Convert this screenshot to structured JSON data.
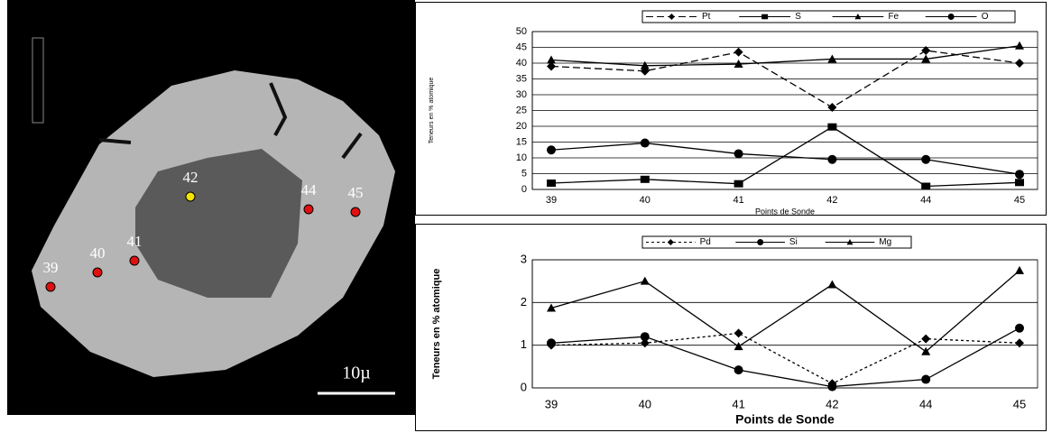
{
  "micrograph": {
    "points": [
      {
        "label": "39",
        "color": "#e01010"
      },
      {
        "label": "40",
        "color": "#e01010"
      },
      {
        "label": "41",
        "color": "#e01010"
      },
      {
        "label": "42",
        "color": "#f5e400"
      },
      {
        "label": "44",
        "color": "#e01010"
      },
      {
        "label": "45",
        "color": "#e01010"
      }
    ],
    "scale_label": "10µ"
  },
  "chart_data": [
    {
      "type": "line",
      "y_label": "Teneurs en % atomique",
      "x_label": "Points de Sonde",
      "categories": [
        "39",
        "40",
        "41",
        "42",
        "44",
        "45"
      ],
      "ylim": [
        0,
        50
      ],
      "yticks": [
        0,
        5,
        10,
        15,
        20,
        25,
        30,
        35,
        40,
        45,
        50
      ],
      "grid": true,
      "series": [
        {
          "name": "Pt",
          "color": "#000000",
          "line_style": "dashed",
          "marker": "diamond",
          "values": [
            39,
            37.5,
            43.5,
            26,
            44,
            40
          ]
        },
        {
          "name": "S",
          "color": "#000000",
          "line_style": "solid",
          "marker": "square",
          "values": [
            2,
            3.2,
            1.8,
            19.8,
            1,
            2.2
          ]
        },
        {
          "name": "Fe",
          "color": "#000000",
          "line_style": "solid",
          "marker": "triangle",
          "values": [
            41,
            39.2,
            39.7,
            41.3,
            41.3,
            45.5
          ]
        },
        {
          "name": "O",
          "color": "#000000",
          "line_style": "solid",
          "marker": "circle",
          "values": [
            12.5,
            14.7,
            11.3,
            9.5,
            9.5,
            4.8
          ]
        }
      ]
    },
    {
      "type": "line",
      "y_label": "Teneurs en % atomique",
      "x_label": "Points de Sonde",
      "categories": [
        "39",
        "40",
        "41",
        "42",
        "44",
        "45"
      ],
      "ylim": [
        0,
        3
      ],
      "yticks": [
        0,
        1,
        2,
        3
      ],
      "grid": true,
      "series": [
        {
          "name": "Pd",
          "color": "#000000",
          "line_style": "dotted",
          "marker": "diamond",
          "values": [
            1,
            1.05,
            1.28,
            0.1,
            1.15,
            1.05
          ]
        },
        {
          "name": "Si",
          "color": "#000000",
          "line_style": "solid",
          "marker": "circle",
          "values": [
            1.05,
            1.2,
            0.42,
            0.03,
            0.2,
            1.4
          ]
        },
        {
          "name": "Mg",
          "color": "#000000",
          "line_style": "solid",
          "marker": "triangle",
          "values": [
            1.87,
            2.5,
            0.97,
            2.42,
            0.85,
            2.75
          ]
        }
      ]
    }
  ]
}
